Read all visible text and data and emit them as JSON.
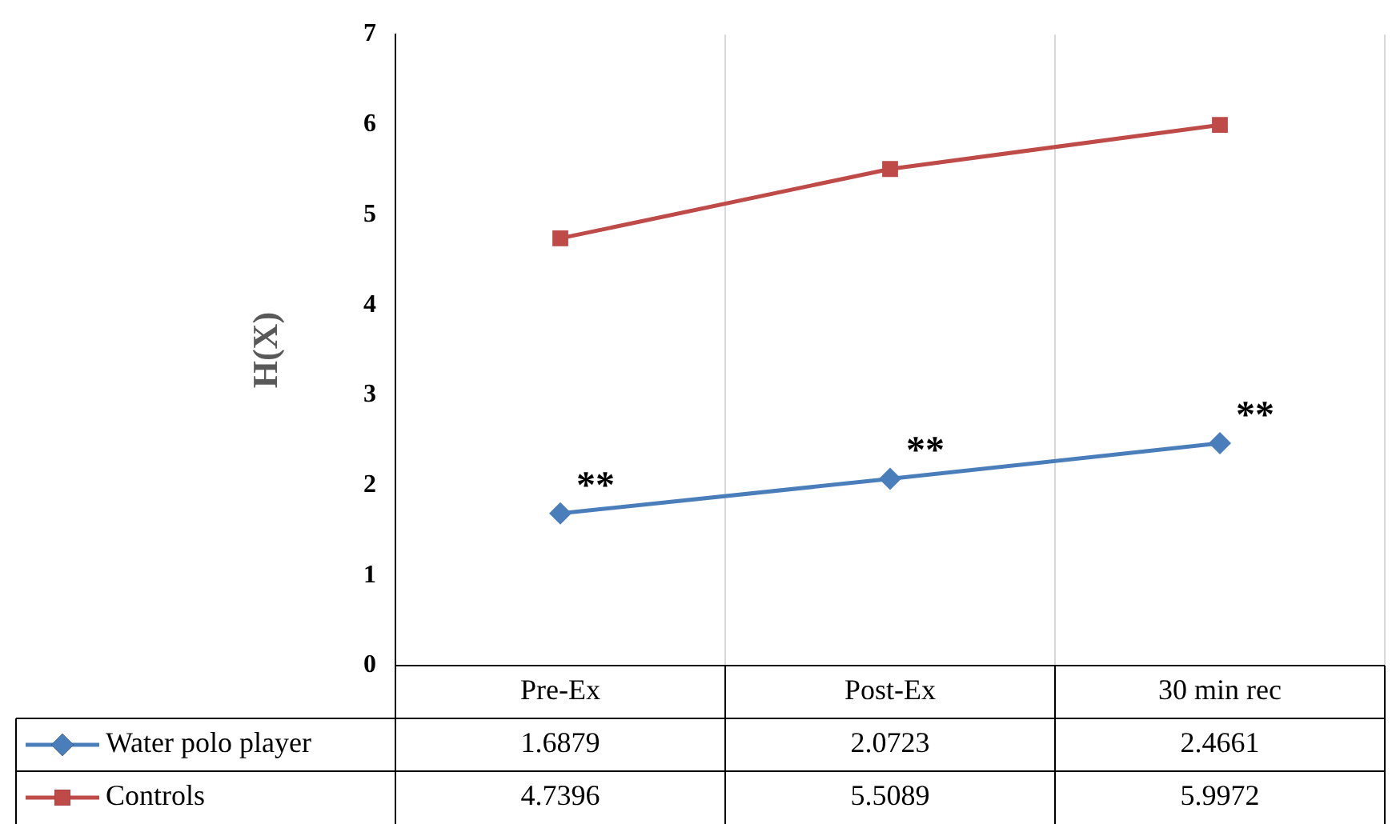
{
  "chart_data": {
    "type": "line",
    "ylabel": "H(X)",
    "categories": [
      "Pre-Ex",
      "Post-Ex",
      "30 min rec"
    ],
    "series": [
      {
        "name": "Water polo player",
        "color": "#4a7ebb",
        "marker": "diamond",
        "values": [
          1.6879,
          2.0723,
          2.4661
        ]
      },
      {
        "name": "Controls",
        "color": "#be4b48",
        "marker": "square",
        "values": [
          4.7396,
          5.5089,
          5.9972
        ]
      }
    ],
    "ylim": [
      0,
      7
    ],
    "yticks": [
      0,
      1,
      2,
      3,
      4,
      5,
      6,
      7
    ],
    "grid": "x",
    "legend": "bottom",
    "data_labels": true,
    "line_style": "solid",
    "annotations": [
      {
        "text": "**",
        "x": "Pre-Ex",
        "y": 1.6879
      },
      {
        "text": "**",
        "x": "Post-Ex",
        "y": 2.0723
      },
      {
        "text": "**",
        "x": "30 min rec",
        "y": 2.4661
      }
    ]
  }
}
